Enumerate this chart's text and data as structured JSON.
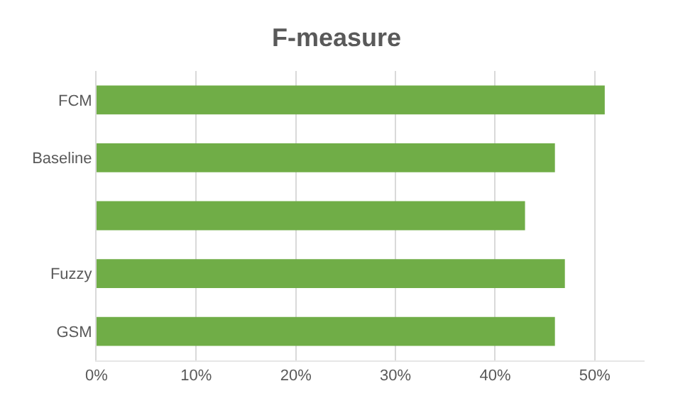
{
  "chart_data": {
    "type": "bar",
    "title": "F-measure",
    "orientation": "horizontal",
    "categories": [
      "FCM",
      "Baseline",
      null,
      "Fuzzy",
      "GSM"
    ],
    "values": [
      51,
      46,
      43,
      47,
      46
    ],
    "color": "#70ad47",
    "xlim": [
      0,
      55
    ],
    "xticks": [
      {
        "value": 0,
        "label": "0%"
      },
      {
        "value": 10,
        "label": "10%"
      },
      {
        "value": 20,
        "label": "20%"
      },
      {
        "value": 30,
        "label": "30%"
      },
      {
        "value": 40,
        "label": "40%"
      },
      {
        "value": 50,
        "label": "50%"
      }
    ],
    "grid": "x"
  }
}
